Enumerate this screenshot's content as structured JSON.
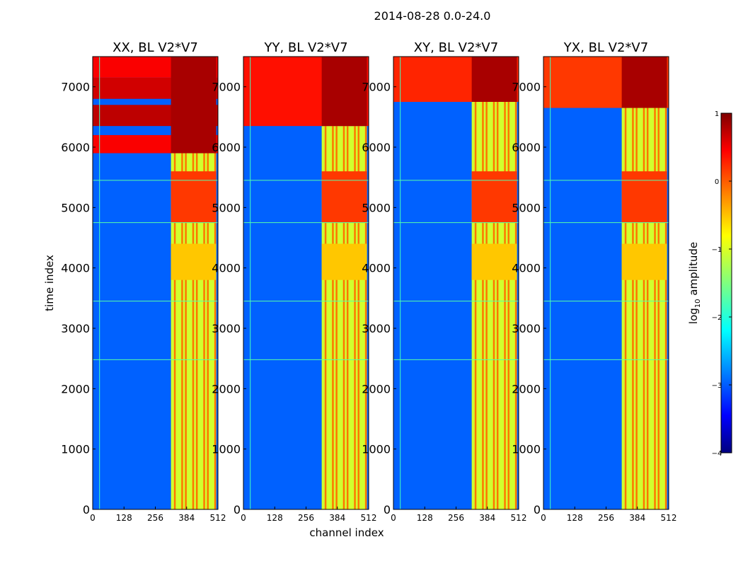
{
  "chart_data": {
    "type": "heatmap",
    "suptitle": "2014-08-28 0.0-24.0",
    "xlabel": "channel index",
    "ylabel": "time index",
    "xlim": [
      0,
      512
    ],
    "ylim": [
      0,
      7500
    ],
    "xticks": [
      0,
      128,
      256,
      384,
      512
    ],
    "yticks": [
      0,
      1000,
      2000,
      3000,
      4000,
      5000,
      6000,
      7000
    ],
    "colorbar": {
      "label_base": "log",
      "label_sub": "10",
      "label_rest": " amplitude",
      "range": [
        -4,
        1
      ],
      "ticks": [
        1,
        0,
        -1,
        -2,
        -3,
        -4
      ],
      "tick_labels": [
        "1",
        "0",
        "−1",
        "−2",
        "−3",
        "−4"
      ],
      "colormap": "jet"
    },
    "panels": [
      {
        "title": "XX, BL V2*V7",
        "strong_band_start": 5900,
        "blocks": [
          {
            "t0": 7150,
            "t1": 7500,
            "v": 0.4
          },
          {
            "t0": 6800,
            "t1": 7150,
            "v": 0.6
          },
          {
            "t0": 6350,
            "t1": 6700,
            "v": 0.7
          },
          {
            "t0": 5900,
            "t1": 6200,
            "v": 0.4
          }
        ]
      },
      {
        "title": "YY, BL V2*V7",
        "strong_band_start": 6350,
        "blocks": [
          {
            "t0": 6350,
            "t1": 7500,
            "v": 0.3
          }
        ]
      },
      {
        "title": "XY, BL V2*V7",
        "strong_band_start": 6750,
        "blocks": [
          {
            "t0": 6750,
            "t1": 7500,
            "v": 0.2
          }
        ]
      },
      {
        "title": "YX, BL V2*V7",
        "strong_band_start": 6650,
        "blocks": [
          {
            "t0": 6650,
            "t1": 7500,
            "v": 0.1
          }
        ]
      }
    ]
  }
}
